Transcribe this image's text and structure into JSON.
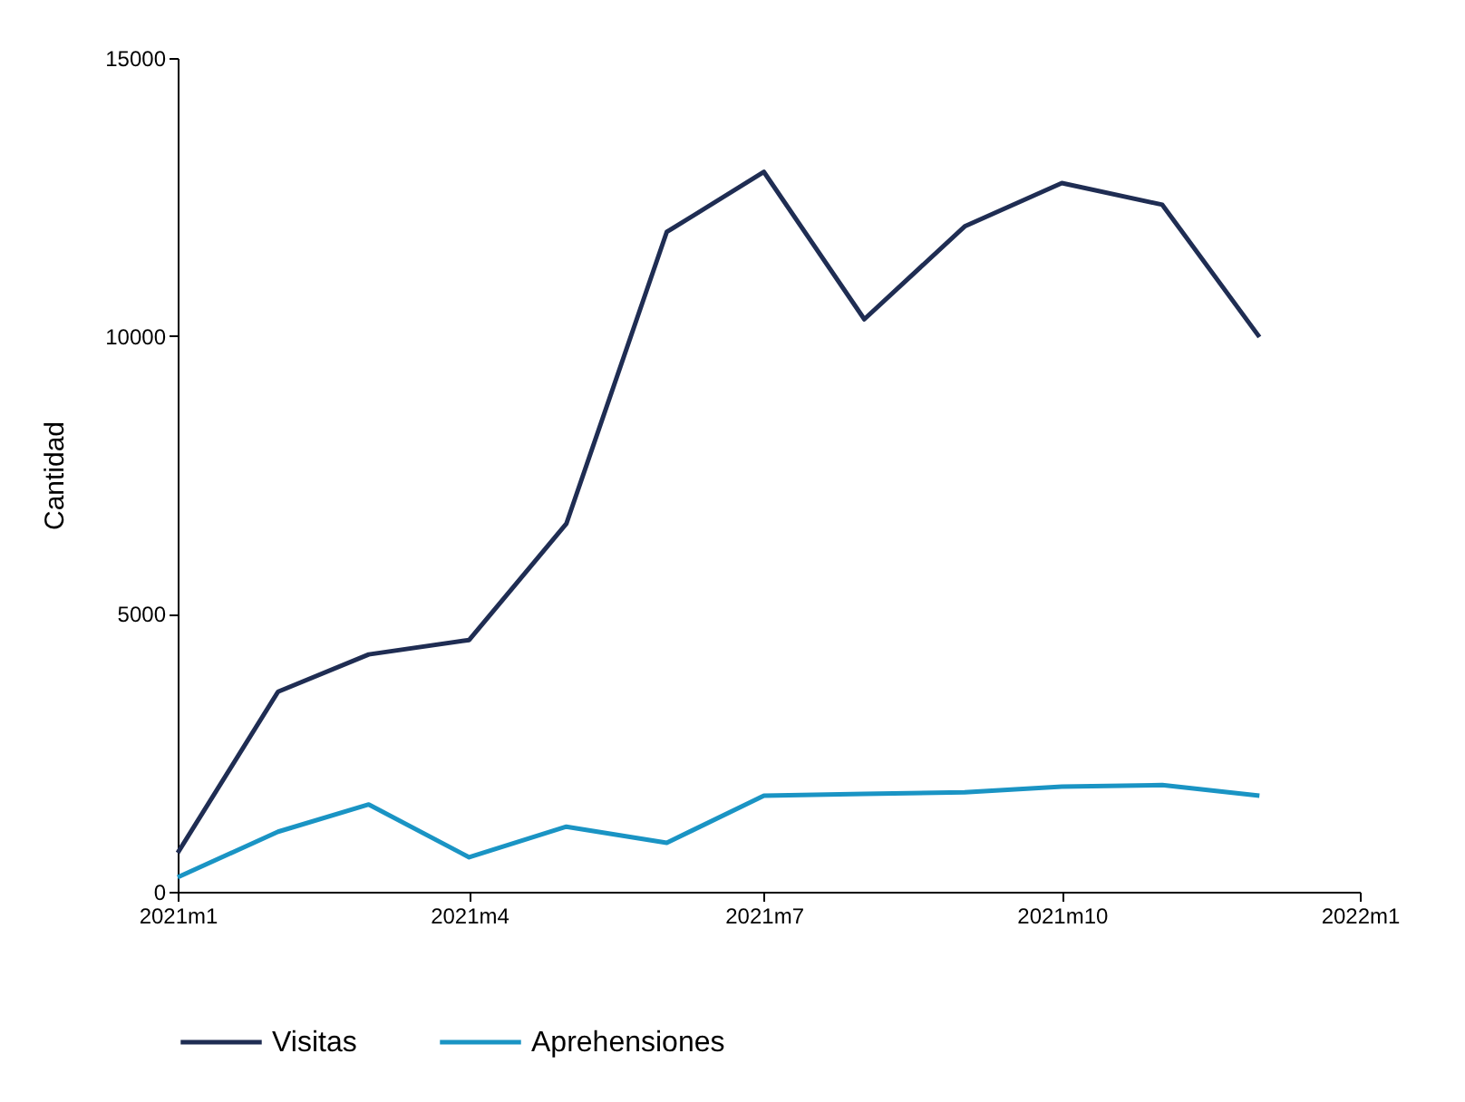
{
  "chart_data": {
    "type": "line",
    "ylabel": "Cantidad",
    "x": [
      "2021-01",
      "2021-02",
      "2021-03",
      "2021-04",
      "2021-05",
      "2021-06",
      "2021-07",
      "2021-08",
      "2021-09",
      "2021-10",
      "2021-11",
      "2021-12"
    ],
    "series": [
      {
        "name": "Visitas",
        "color": "#1f2d53",
        "values": [
          700,
          3600,
          4270,
          4530,
          6620,
          11870,
          12950,
          10300,
          11970,
          12750,
          12360,
          9980
        ]
      },
      {
        "name": "Aprehensiones",
        "color": "#1a94c4",
        "values": [
          260,
          1080,
          1570,
          620,
          1170,
          880,
          1730,
          1760,
          1790,
          1890,
          1920,
          1730
        ]
      }
    ],
    "xlim": [
      "2021-01",
      "2022-01"
    ],
    "xticks": [
      {
        "value": "2021-01",
        "label": "2021m1"
      },
      {
        "value": "2021-04",
        "label": "2021m4"
      },
      {
        "value": "2021-07",
        "label": "2021m7"
      },
      {
        "value": "2021-10",
        "label": "2021m10"
      },
      {
        "value": "2022-01",
        "label": "2022m1"
      }
    ],
    "ylim": [
      0,
      15000
    ],
    "yticks": [
      0,
      5000,
      10000,
      15000
    ],
    "grid": false,
    "legend": "bottom",
    "marker": "none",
    "line_style": "solid"
  }
}
